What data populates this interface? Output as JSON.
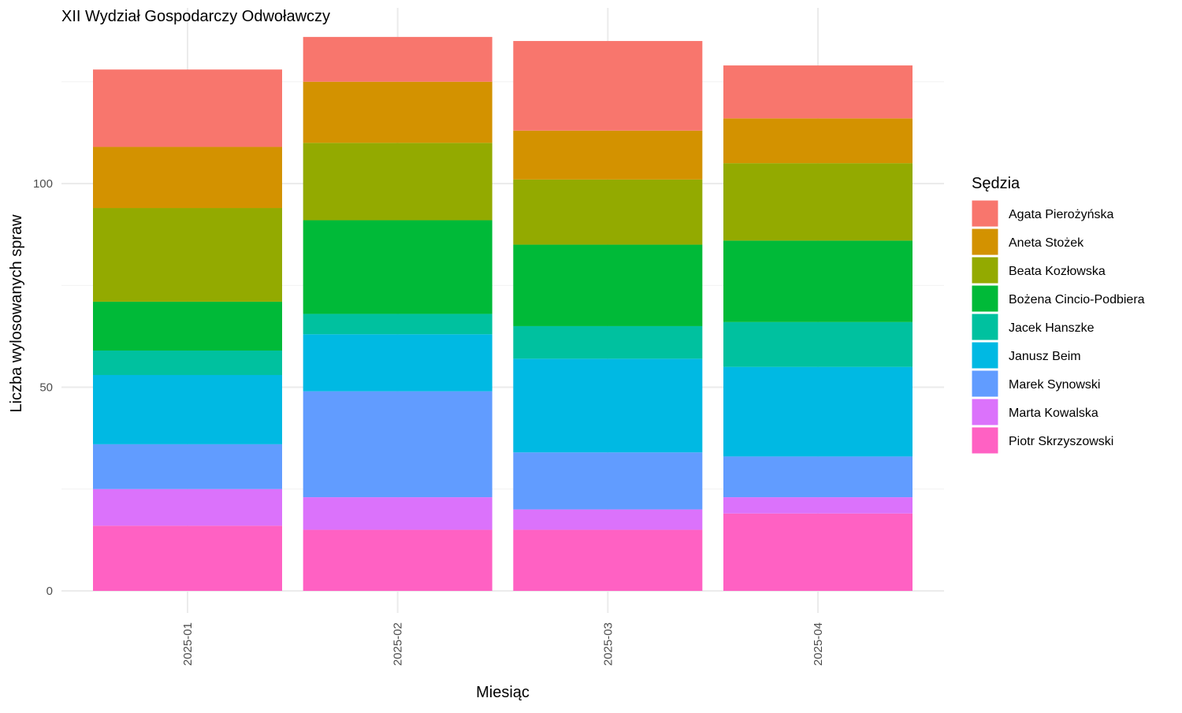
{
  "chart_data": {
    "type": "bar",
    "stacked": true,
    "title": "XII Wydział Gospodarczy Odwoławczy",
    "xlabel": "Miesiąc",
    "ylabel": "Liczba wylosowanych spraw",
    "categories": [
      "2025-01",
      "2025-02",
      "2025-03",
      "2025-04"
    ],
    "ylim": [
      0,
      137
    ],
    "yticks": [
      0,
      50,
      100
    ],
    "grid": true,
    "legend": {
      "title": "Sędzia",
      "position": "right"
    },
    "series": [
      {
        "name": "Agata Pierożyńska",
        "color": "#F8766D",
        "values": [
          19,
          11,
          22,
          13
        ]
      },
      {
        "name": "Aneta Stożek",
        "color": "#D39200",
        "values": [
          15,
          15,
          12,
          11
        ]
      },
      {
        "name": "Beata Kozłowska",
        "color": "#93AA00",
        "values": [
          23,
          19,
          16,
          19
        ]
      },
      {
        "name": "Bożena Cincio-Podbiera",
        "color": "#00BA38",
        "values": [
          12,
          23,
          20,
          20
        ]
      },
      {
        "name": "Jacek Hanszke",
        "color": "#00C19F",
        "values": [
          6,
          5,
          8,
          11
        ]
      },
      {
        "name": "Janusz Beim",
        "color": "#00B9E3",
        "values": [
          17,
          14,
          23,
          22
        ]
      },
      {
        "name": "Marek Synowski",
        "color": "#619CFF",
        "values": [
          11,
          26,
          14,
          10
        ]
      },
      {
        "name": "Marta Kowalska",
        "color": "#DB72FB",
        "values": [
          9,
          8,
          5,
          4
        ]
      },
      {
        "name": "Piotr Skrzyszowski",
        "color": "#FF61C3",
        "values": [
          16,
          15,
          15,
          19
        ]
      }
    ]
  }
}
